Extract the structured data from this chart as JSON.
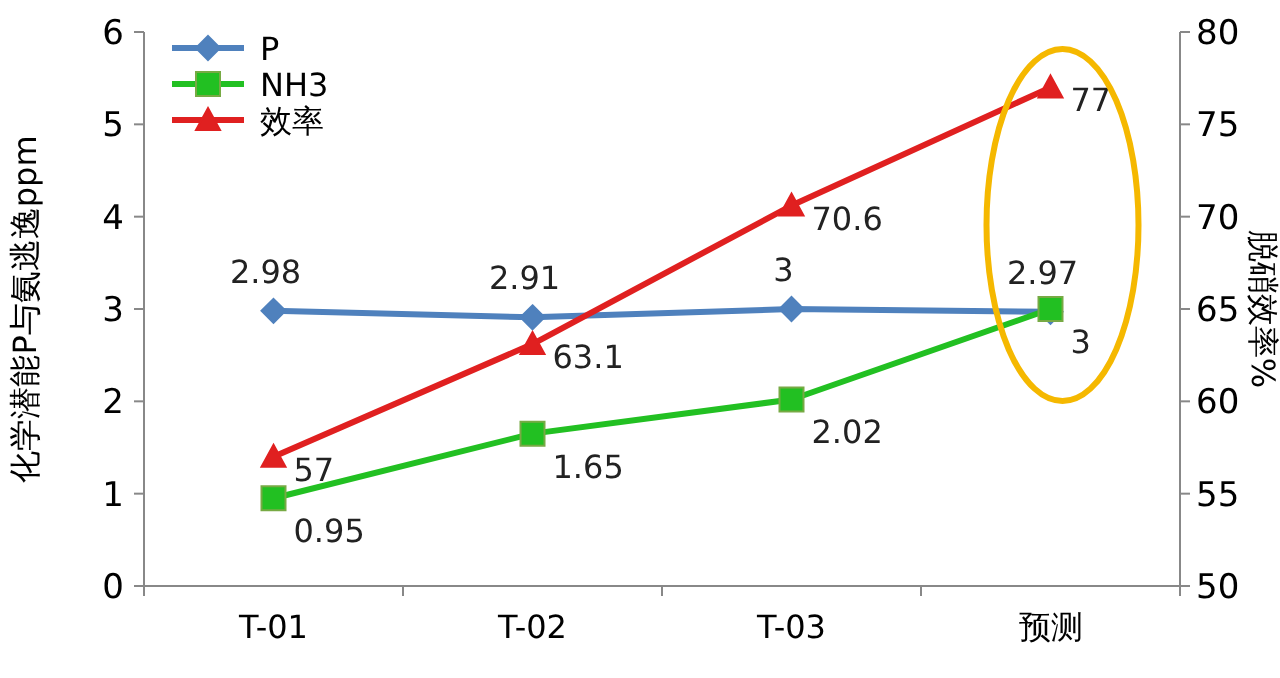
{
  "chart_data": {
    "type": "line",
    "categories": [
      "T-01",
      "T-02",
      "T-03",
      "预测"
    ],
    "ylabel": "化学潜能P与氨逃逸ppm",
    "y2label": "脱硝效率%",
    "ylim": [
      0,
      6
    ],
    "yticks": [
      0,
      1,
      2,
      3,
      4,
      5,
      6
    ],
    "y2lim": [
      50,
      80
    ],
    "y2ticks": [
      50,
      55,
      60,
      65,
      70,
      75,
      80
    ],
    "series": [
      {
        "name": "P",
        "color": "#4f81bd",
        "marker": "diamond",
        "values": [
          2.98,
          2.91,
          3,
          2.97
        ]
      },
      {
        "name": "NH3",
        "color": "#22c022",
        "marker": "square",
        "values": [
          0.95,
          1.65,
          2.02,
          3
        ]
      },
      {
        "name": "效率",
        "color": "#e02020",
        "marker": "triangle",
        "axis": "y2",
        "values": [
          57,
          63.1,
          70.6,
          77
        ]
      }
    ],
    "data_labels": true,
    "legend": "top left",
    "grid": false
  }
}
